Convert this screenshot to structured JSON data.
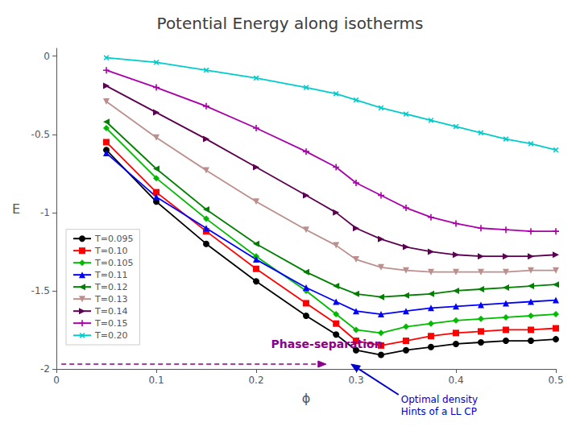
{
  "chart_data": {
    "type": "line",
    "title": "Potential Energy along isotherms",
    "xlabel": "ϕ",
    "ylabel": "E",
    "xlim": [
      0,
      0.5
    ],
    "ylim": [
      -2.0,
      0.05
    ],
    "xticks": [
      0,
      0.1,
      0.2,
      0.3,
      0.4,
      0.5
    ],
    "yticks": [
      0,
      -0.5,
      -1,
      -1.5,
      -2
    ],
    "grid": false,
    "legend": "lower left",
    "x": [
      0.05,
      0.1,
      0.15,
      0.2,
      0.25,
      0.28,
      0.3,
      0.325,
      0.35,
      0.375,
      0.4,
      0.425,
      0.45,
      0.475,
      0.5
    ],
    "series": [
      {
        "name": "T=0.095",
        "color": "#000000",
        "marker": "circle",
        "values": [
          -0.6,
          -0.93,
          -1.2,
          -1.44,
          -1.66,
          -1.78,
          -1.88,
          -1.91,
          -1.88,
          -1.86,
          -1.84,
          -1.83,
          -1.82,
          -1.82,
          -1.81
        ]
      },
      {
        "name": "T=0.10",
        "color": "#ff0000",
        "marker": "square",
        "values": [
          -0.55,
          -0.87,
          -1.12,
          -1.36,
          -1.58,
          -1.71,
          -1.82,
          -1.85,
          -1.82,
          -1.79,
          -1.77,
          -1.76,
          -1.75,
          -1.75,
          -1.74
        ]
      },
      {
        "name": "T=0.105",
        "color": "#00bb00",
        "marker": "diamond",
        "values": [
          -0.46,
          -0.78,
          -1.04,
          -1.28,
          -1.5,
          -1.65,
          -1.75,
          -1.77,
          -1.73,
          -1.71,
          -1.69,
          -1.68,
          -1.67,
          -1.66,
          -1.65
        ]
      },
      {
        "name": "T=0.11",
        "color": "#0000ff",
        "marker": "triangle-up",
        "values": [
          -0.62,
          -0.9,
          -1.1,
          -1.3,
          -1.48,
          -1.57,
          -1.63,
          -1.65,
          -1.63,
          -1.61,
          -1.6,
          -1.59,
          -1.58,
          -1.57,
          -1.56
        ]
      },
      {
        "name": "T=0.12",
        "color": "#008000",
        "marker": "triangle-left",
        "values": [
          -0.42,
          -0.72,
          -0.98,
          -1.2,
          -1.38,
          -1.47,
          -1.52,
          -1.54,
          -1.53,
          -1.52,
          -1.5,
          -1.49,
          -1.48,
          -1.47,
          -1.46
        ]
      },
      {
        "name": "T=0.13",
        "color": "#bc8f8f",
        "marker": "triangle-down",
        "values": [
          -0.29,
          -0.52,
          -0.73,
          -0.93,
          -1.11,
          -1.21,
          -1.3,
          -1.35,
          -1.37,
          -1.38,
          -1.38,
          -1.38,
          -1.38,
          -1.37,
          -1.37
        ]
      },
      {
        "name": "T=0.14",
        "color": "#5c0050",
        "marker": "triangle-right",
        "values": [
          -0.19,
          -0.36,
          -0.53,
          -0.71,
          -0.89,
          -1.0,
          -1.1,
          -1.17,
          -1.22,
          -1.25,
          -1.27,
          -1.28,
          -1.28,
          -1.28,
          -1.27
        ]
      },
      {
        "name": "T=0.15",
        "color": "#aa00aa",
        "marker": "plus",
        "values": [
          -0.09,
          -0.2,
          -0.32,
          -0.46,
          -0.61,
          -0.71,
          -0.81,
          -0.89,
          -0.97,
          -1.03,
          -1.07,
          -1.1,
          -1.11,
          -1.12,
          -1.12
        ]
      },
      {
        "name": "T=0.20",
        "color": "#00cccc",
        "marker": "x",
        "values": [
          -0.01,
          -0.04,
          -0.09,
          -0.14,
          -0.2,
          -0.24,
          -0.28,
          -0.33,
          -0.37,
          -0.41,
          -0.45,
          -0.49,
          -0.53,
          -0.56,
          -0.6
        ]
      }
    ],
    "annotations": [
      {
        "text": "Phase-separation",
        "color": "#8b008b"
      },
      {
        "text": "Optimal density\nHints of a LL CP",
        "color": "#0000cd"
      }
    ]
  }
}
